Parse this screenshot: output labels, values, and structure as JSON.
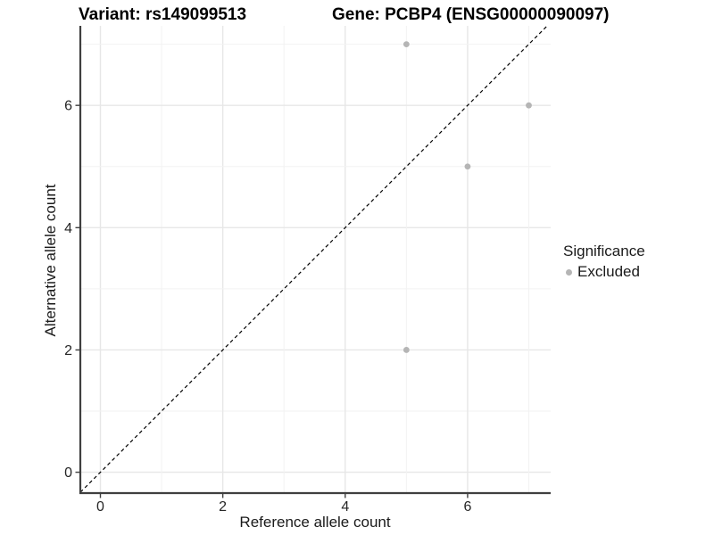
{
  "titles": {
    "variant": "Variant: rs149099513",
    "gene": "Gene: PCBP4 (ENSG00000090097)"
  },
  "chart_data": {
    "type": "scatter",
    "title": "Variant: rs149099513   Gene: PCBP4 (ENSG00000090097)",
    "xlabel": "Reference allele count",
    "ylabel": "Alternative allele count",
    "x_ticks": [
      0,
      2,
      4,
      6
    ],
    "y_ticks": [
      0,
      2,
      4,
      6
    ],
    "xlim": [
      -0.35,
      7.35
    ],
    "ylim": [
      -0.35,
      7.35
    ],
    "grid": "on",
    "gridline_values": [
      0,
      1,
      2,
      3,
      4,
      5,
      6,
      7
    ],
    "series": [
      {
        "name": "Excluded",
        "color": "#b5b5b5",
        "points": [
          [
            5,
            7
          ],
          [
            7,
            6
          ],
          [
            6,
            5
          ],
          [
            5,
            2
          ]
        ]
      }
    ],
    "reference_line": {
      "type": "identity y=x",
      "style": "dashed",
      "color": "#000000"
    },
    "legend": {
      "title": "Significance",
      "position": "right",
      "entries": [
        {
          "label": "Excluded",
          "color": "#b5b5b5"
        }
      ]
    }
  },
  "colors": {
    "background": "#ffffff",
    "axis_line": "#3f3f3f",
    "axis_text": "#262626",
    "grid_major": "#e7e7e7",
    "grid_minor": "#f2f2f2",
    "point": "#b5b5b5"
  }
}
